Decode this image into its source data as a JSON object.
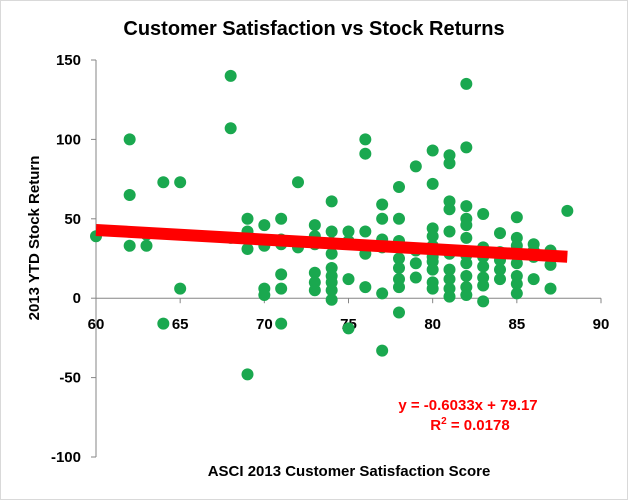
{
  "chart_data": {
    "type": "scatter",
    "title": "Customer Satisfaction vs Stock Returns",
    "xlabel": "ASCI 2013 Customer Satisfaction Score",
    "ylabel": "2013 YTD Stock Return",
    "xlim": [
      60,
      90
    ],
    "ylim": [
      -100,
      150
    ],
    "x_ticks": [
      60,
      65,
      70,
      75,
      80,
      85,
      90
    ],
    "x_tick_labels": [
      "60",
      "65",
      "70",
      "75",
      "80",
      "85",
      "90"
    ],
    "y_ticks": [
      150,
      100,
      50,
      0,
      -50,
      -100
    ],
    "y_tick_labels": [
      "150",
      "100",
      "50",
      "0",
      "-50",
      "-100"
    ],
    "grid": false,
    "marker_color": "#1aa84f",
    "trendline_color": "#ff0000",
    "trendline": {
      "slope": -0.6033,
      "intercept": 79.17,
      "x_range": [
        60,
        88
      ]
    },
    "equation_text": "y = -0.6033x + 79.17",
    "r2_prefix": "R",
    "r2_sup": "2",
    "r2_value": " = 0.0178",
    "points": [
      [
        60,
        39
      ],
      [
        62,
        100
      ],
      [
        62,
        65
      ],
      [
        62,
        33
      ],
      [
        63,
        33
      ],
      [
        63,
        40
      ],
      [
        64,
        73
      ],
      [
        64,
        -16
      ],
      [
        65,
        73
      ],
      [
        65,
        6
      ],
      [
        68,
        140
      ],
      [
        68,
        107
      ],
      [
        68,
        38
      ],
      [
        69,
        50
      ],
      [
        69,
        42
      ],
      [
        69,
        31
      ],
      [
        69,
        -48
      ],
      [
        70,
        46
      ],
      [
        70,
        35
      ],
      [
        70,
        33
      ],
      [
        70,
        6
      ],
      [
        70,
        2
      ],
      [
        71,
        50
      ],
      [
        71,
        37
      ],
      [
        71,
        34
      ],
      [
        71,
        15
      ],
      [
        71,
        6
      ],
      [
        71,
        -16
      ],
      [
        72,
        73
      ],
      [
        72,
        32
      ],
      [
        72,
        34
      ],
      [
        73,
        46
      ],
      [
        73,
        39
      ],
      [
        73,
        34
      ],
      [
        73,
        16
      ],
      [
        73,
        10
      ],
      [
        73,
        5
      ],
      [
        74,
        61
      ],
      [
        74,
        42
      ],
      [
        74,
        35
      ],
      [
        74,
        28
      ],
      [
        74,
        19
      ],
      [
        74,
        14
      ],
      [
        74,
        10
      ],
      [
        74,
        5
      ],
      [
        74,
        -1
      ],
      [
        75,
        42
      ],
      [
        75,
        36
      ],
      [
        75,
        12
      ],
      [
        75,
        -19
      ],
      [
        76,
        100
      ],
      [
        76,
        91
      ],
      [
        76,
        42
      ],
      [
        76,
        28
      ],
      [
        76,
        7
      ],
      [
        77,
        59
      ],
      [
        77,
        50
      ],
      [
        77,
        37
      ],
      [
        77,
        32
      ],
      [
        77,
        3
      ],
      [
        77,
        -33
      ],
      [
        78,
        70
      ],
      [
        78,
        50
      ],
      [
        78,
        36
      ],
      [
        78,
        25
      ],
      [
        78,
        19
      ],
      [
        78,
        12
      ],
      [
        78,
        7
      ],
      [
        78,
        -9
      ],
      [
        79,
        83
      ],
      [
        79,
        30
      ],
      [
        79,
        22
      ],
      [
        79,
        13
      ],
      [
        80,
        93
      ],
      [
        80,
        72
      ],
      [
        80,
        44
      ],
      [
        80,
        39
      ],
      [
        80,
        33
      ],
      [
        80,
        26
      ],
      [
        80,
        23
      ],
      [
        80,
        18
      ],
      [
        80,
        10
      ],
      [
        80,
        6
      ],
      [
        81,
        90
      ],
      [
        81,
        85
      ],
      [
        81,
        61
      ],
      [
        81,
        56
      ],
      [
        81,
        42
      ],
      [
        81,
        28
      ],
      [
        81,
        18
      ],
      [
        81,
        12
      ],
      [
        81,
        6
      ],
      [
        81,
        1
      ],
      [
        82,
        135
      ],
      [
        82,
        95
      ],
      [
        82,
        58
      ],
      [
        82,
        50
      ],
      [
        82,
        46
      ],
      [
        82,
        38
      ],
      [
        82,
        27
      ],
      [
        82,
        22
      ],
      [
        82,
        14
      ],
      [
        82,
        7
      ],
      [
        82,
        2
      ],
      [
        83,
        53
      ],
      [
        83,
        32
      ],
      [
        83,
        26
      ],
      [
        83,
        20
      ],
      [
        83,
        13
      ],
      [
        83,
        8
      ],
      [
        83,
        -2
      ],
      [
        84,
        41
      ],
      [
        84,
        29
      ],
      [
        84,
        24
      ],
      [
        84,
        18
      ],
      [
        84,
        12
      ],
      [
        85,
        51
      ],
      [
        85,
        38
      ],
      [
        85,
        33
      ],
      [
        85,
        28
      ],
      [
        85,
        22
      ],
      [
        85,
        14
      ],
      [
        85,
        9
      ],
      [
        85,
        3
      ],
      [
        86,
        34
      ],
      [
        86,
        30
      ],
      [
        86,
        26
      ],
      [
        86,
        12
      ],
      [
        87,
        30
      ],
      [
        87,
        27
      ],
      [
        87,
        21
      ],
      [
        87,
        6
      ],
      [
        88,
        55
      ]
    ]
  }
}
